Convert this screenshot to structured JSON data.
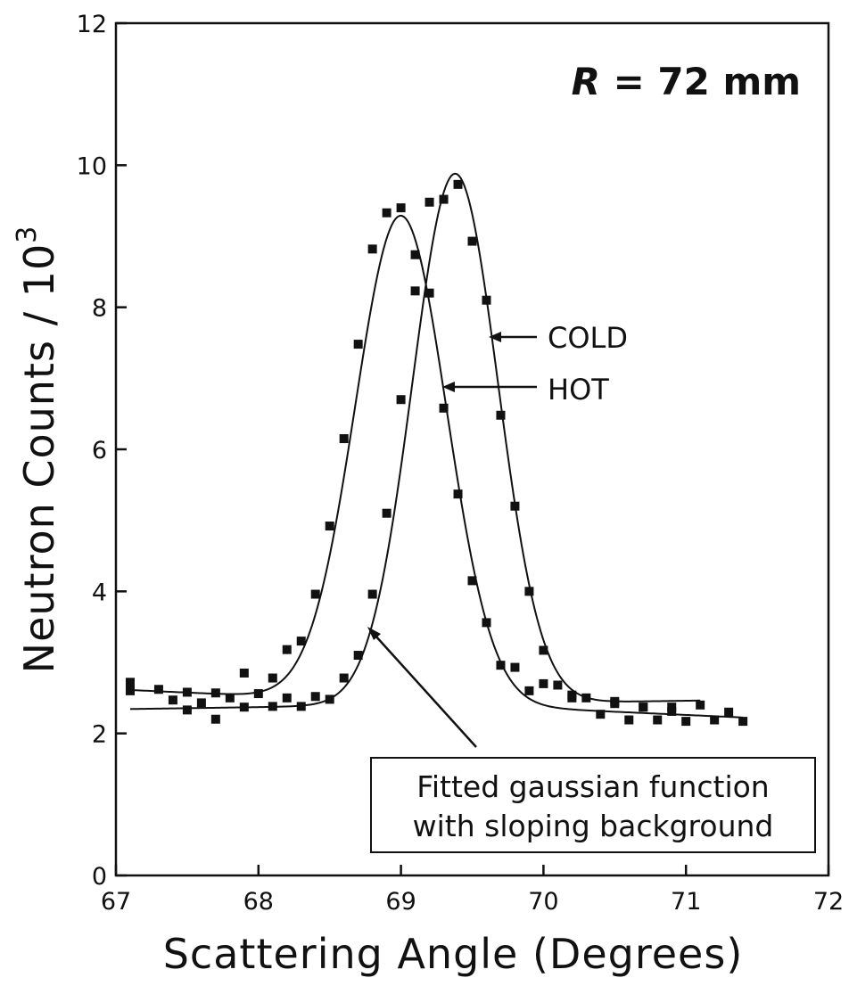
{
  "chart_data": {
    "type": "scatter",
    "title": "",
    "xlabel": "Scattering Angle (Degrees)",
    "ylabel": "Neutron Counts / 10",
    "ylabel_superscript": "3",
    "xlim": [
      67,
      72
    ],
    "ylim": [
      0,
      12
    ],
    "x_ticks": [
      "67",
      "68",
      "69",
      "70",
      "71",
      "72"
    ],
    "y_ticks": [
      "0",
      "2",
      "4",
      "6",
      "8",
      "10",
      "12"
    ],
    "grid": false,
    "legend": "none",
    "plot_label": {
      "symbol": "R",
      "rest": " = 72 mm"
    },
    "annotations": {
      "cold": "COLD",
      "hot": "HOT",
      "box_line1": "Fitted gaussian function",
      "box_line2": "with sloping background"
    },
    "series": [
      {
        "name": "HOT",
        "x": [
          67.1,
          67.3,
          67.4,
          67.5,
          67.6,
          67.7,
          67.8,
          67.9,
          68.0,
          68.1,
          68.2,
          68.3,
          68.4,
          68.5,
          68.6,
          68.7,
          68.8,
          68.9,
          69.0,
          69.1,
          69.2,
          69.3,
          69.4,
          69.5,
          69.6,
          69.7,
          69.8,
          69.9,
          70.0,
          70.1,
          70.2,
          70.3,
          70.4,
          70.5,
          70.6,
          70.7,
          70.8,
          70.9,
          71.0,
          71.2,
          71.3,
          71.4
        ],
        "y": [
          2.72,
          2.62,
          2.47,
          2.58,
          2.43,
          2.57,
          2.5,
          2.85,
          2.56,
          2.78,
          3.18,
          3.3,
          3.96,
          4.92,
          6.15,
          7.48,
          8.82,
          9.33,
          9.4,
          8.74,
          8.2,
          6.58,
          5.37,
          4.15,
          3.56,
          2.96,
          2.93,
          2.6,
          2.7,
          2.68,
          2.5,
          2.5,
          2.27,
          2.45,
          2.19,
          2.37,
          2.19,
          2.37,
          2.17,
          2.19,
          2.3,
          2.17
        ],
        "fit": {
          "amplitude": 6.85,
          "center": 69.0,
          "sigma": 0.32,
          "background_at_67": 2.62,
          "background_slope": -0.09
        }
      },
      {
        "name": "COLD",
        "x": [
          67.1,
          67.5,
          67.7,
          67.9,
          68.1,
          68.2,
          68.3,
          68.4,
          68.5,
          68.6,
          68.7,
          68.8,
          68.9,
          69.0,
          69.1,
          69.2,
          69.3,
          69.4,
          69.5,
          69.6,
          69.7,
          69.8,
          69.9,
          70.0,
          70.2,
          70.5,
          70.7,
          70.9,
          71.1
        ],
        "y": [
          2.6,
          2.33,
          2.2,
          2.37,
          2.38,
          2.5,
          2.38,
          2.52,
          2.48,
          2.78,
          3.1,
          3.96,
          5.1,
          6.7,
          8.23,
          9.48,
          9.52,
          9.73,
          8.93,
          8.1,
          6.48,
          5.2,
          4.0,
          3.17,
          2.54,
          2.42,
          2.37,
          2.31,
          2.4
        ],
        "fit": {
          "amplitude": 7.47,
          "center": 69.38,
          "sigma": 0.3,
          "background_at_67": 2.34,
          "background_slope": 0.03
        }
      }
    ]
  }
}
